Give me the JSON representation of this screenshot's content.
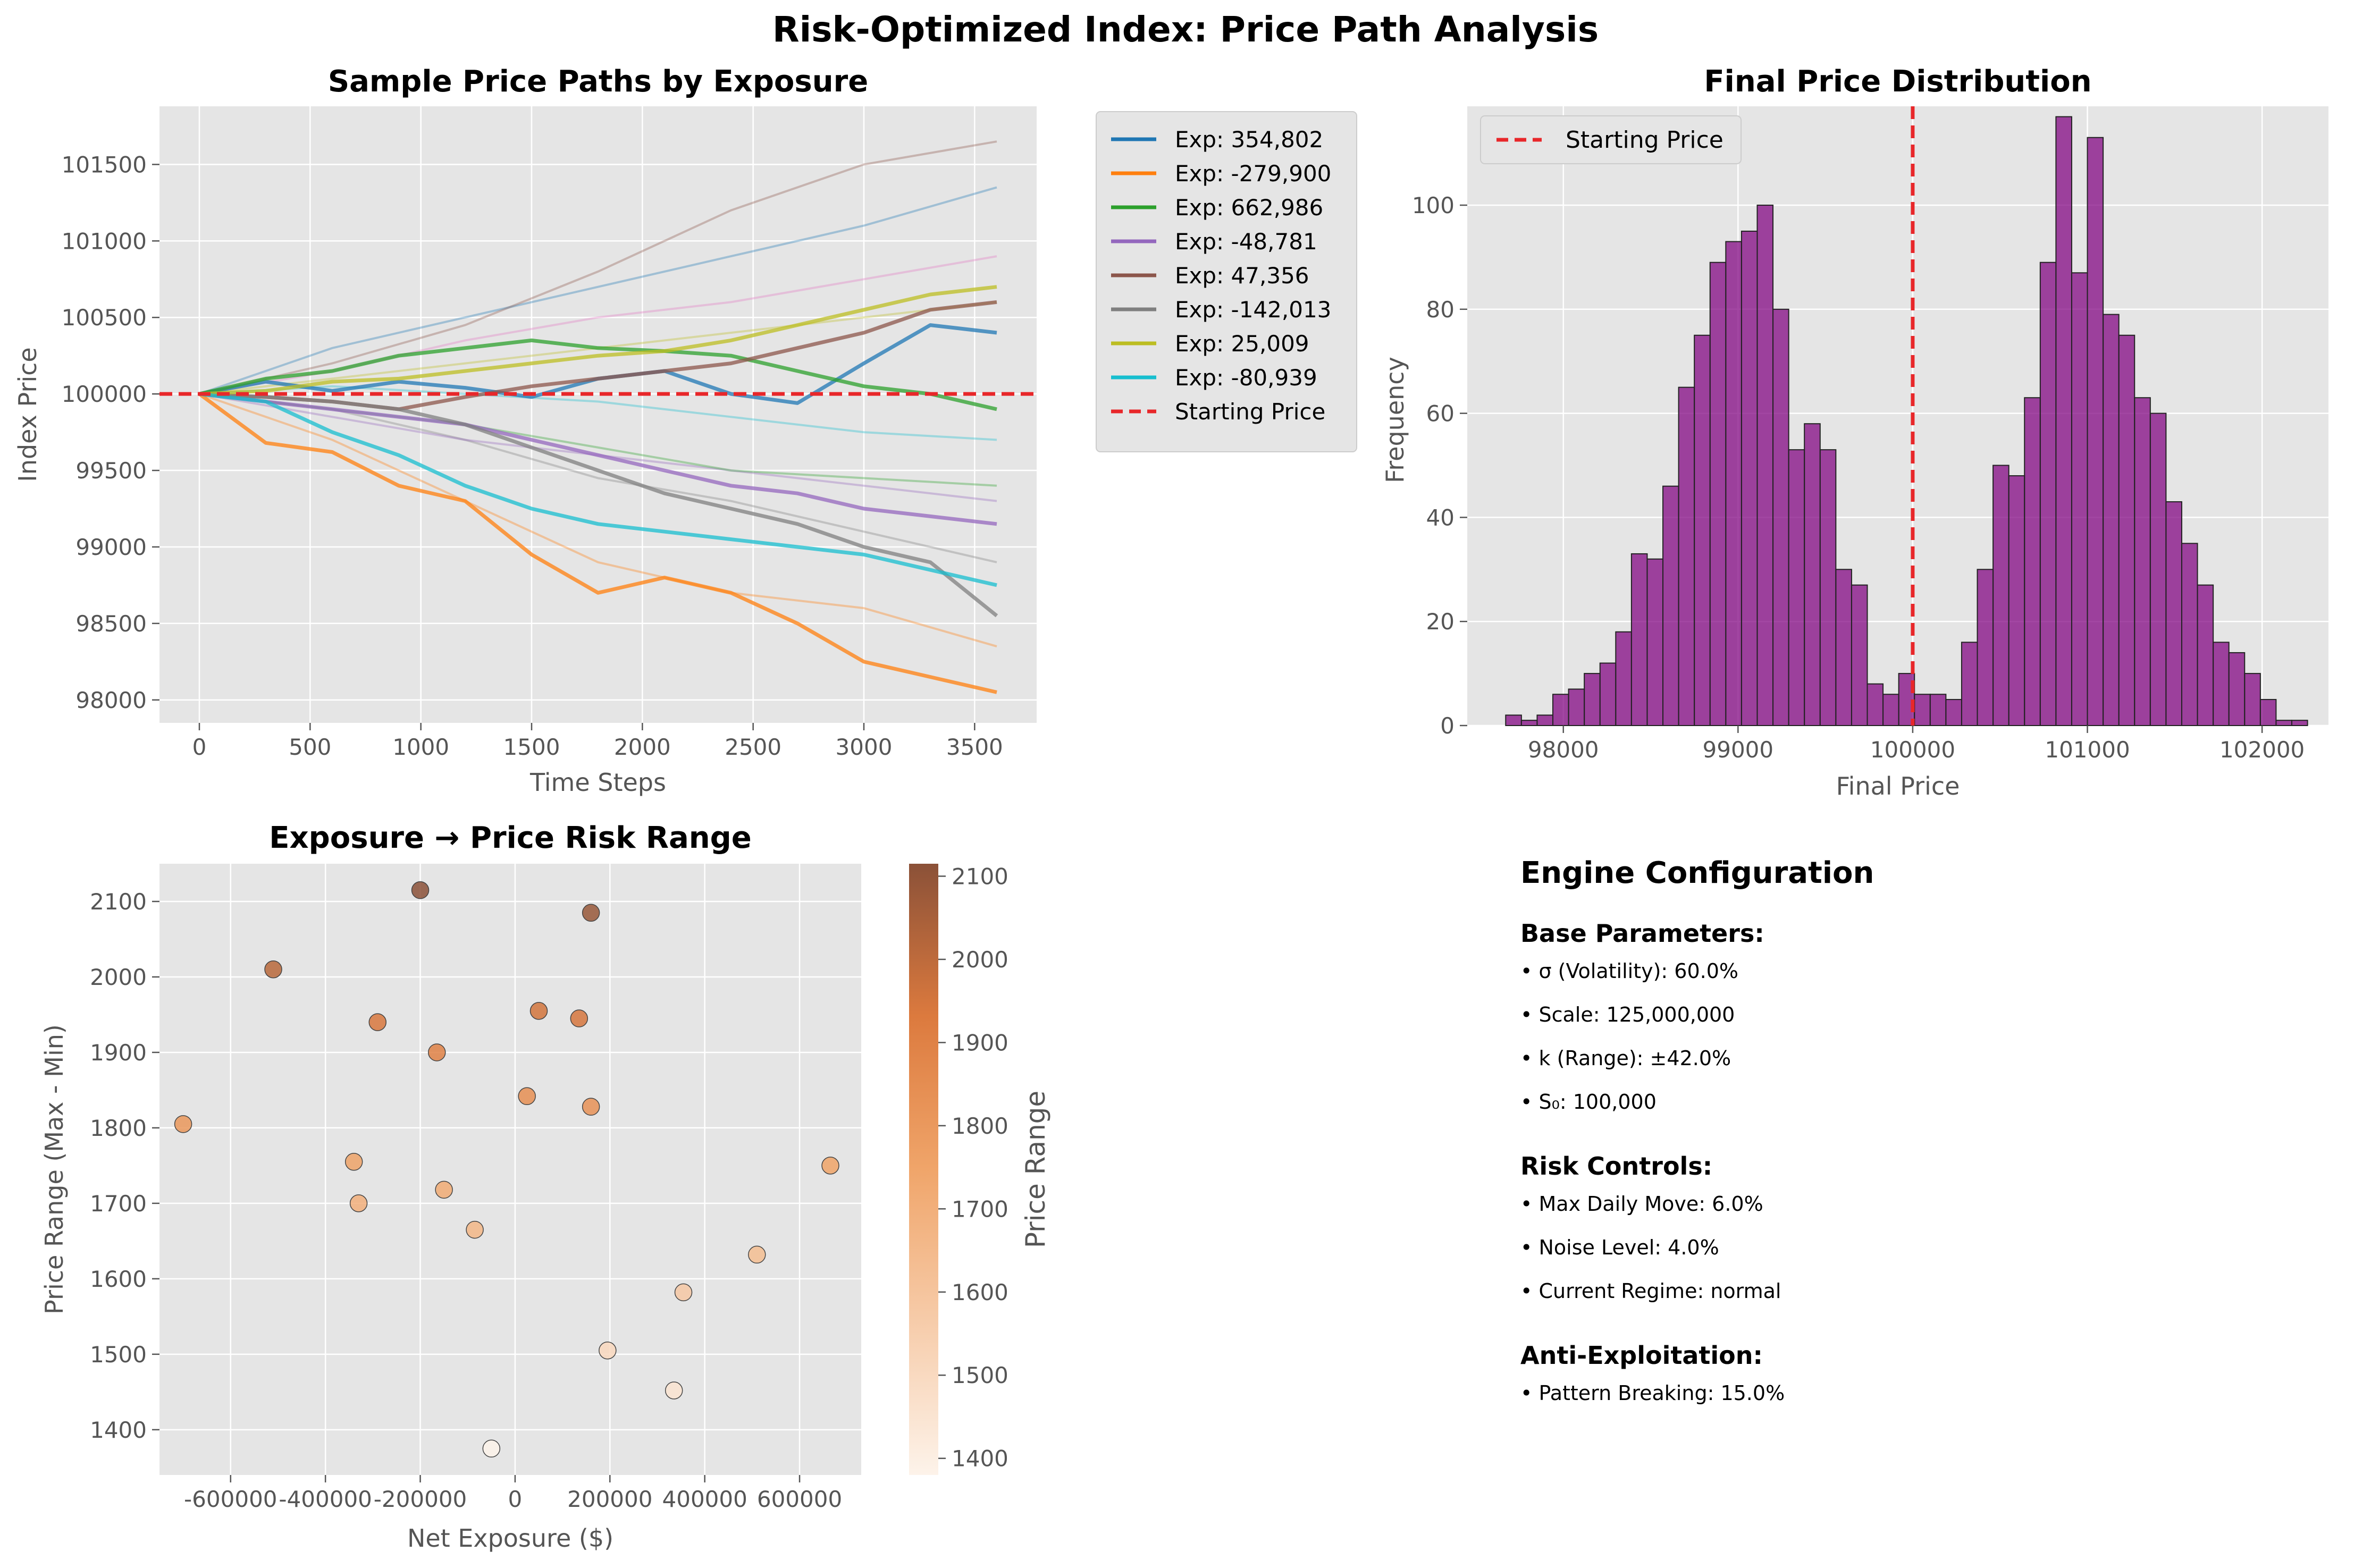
{
  "figure": {
    "suptitle": "Risk-Optimized Index: Price Path Analysis"
  },
  "chart_data": [
    {
      "type": "line",
      "title": "Sample Price Paths by Exposure",
      "xlabel": "Time Steps",
      "ylabel": "Index Price",
      "xlim": [
        -180,
        3780
      ],
      "ylim": [
        97850,
        101880
      ],
      "xticks": [
        0,
        500,
        1000,
        1500,
        2000,
        2500,
        3000,
        3500
      ],
      "yticks": [
        98000,
        98500,
        99000,
        99500,
        100000,
        100500,
        101000,
        101500
      ],
      "grid": true,
      "legend": "outside-right",
      "starting_price": 100000,
      "starting_price_label": "Starting Price",
      "series": [
        {
          "name": "Exp: 354,802",
          "color": "#1f77b4",
          "x": [
            0,
            300,
            600,
            900,
            1200,
            1500,
            1800,
            2100,
            2400,
            2700,
            3000,
            3300,
            3600
          ],
          "values": [
            100000,
            100080,
            100020,
            100080,
            100040,
            99980,
            100100,
            100150,
            100000,
            99940,
            100200,
            100450,
            100400
          ]
        },
        {
          "name": "Exp: -279,900",
          "color": "#ff7f0e",
          "x": [
            0,
            300,
            600,
            900,
            1200,
            1500,
            1800,
            2100,
            2400,
            2700,
            3000,
            3300,
            3600
          ],
          "values": [
            100000,
            99680,
            99620,
            99400,
            99300,
            98950,
            98700,
            98800,
            98700,
            98500,
            98250,
            98150,
            98050
          ]
        },
        {
          "name": "Exp: 662,986",
          "color": "#2ca02c",
          "x": [
            0,
            300,
            600,
            900,
            1200,
            1500,
            1800,
            2100,
            2400,
            2700,
            3000,
            3300,
            3600
          ],
          "values": [
            100000,
            100100,
            100150,
            100250,
            100300,
            100350,
            100300,
            100280,
            100250,
            100150,
            100050,
            100000,
            99900
          ]
        },
        {
          "name": "Exp: -48,781",
          "color": "#9467bd",
          "x": [
            0,
            300,
            600,
            900,
            1200,
            1500,
            1800,
            2100,
            2400,
            2700,
            3000,
            3300,
            3600
          ],
          "values": [
            100000,
            99950,
            99900,
            99850,
            99800,
            99700,
            99600,
            99500,
            99400,
            99350,
            99250,
            99200,
            99150
          ]
        },
        {
          "name": "Exp: 47,356",
          "color": "#8c564b",
          "x": [
            0,
            300,
            600,
            900,
            1200,
            1500,
            1800,
            2100,
            2400,
            2700,
            3000,
            3300,
            3600
          ],
          "values": [
            100000,
            99980,
            99950,
            99900,
            99980,
            100050,
            100100,
            100150,
            100200,
            100300,
            100400,
            100550,
            100600
          ]
        },
        {
          "name": "Exp: -142,013",
          "color": "#7f7f7f",
          "x": [
            0,
            300,
            600,
            900,
            1200,
            1500,
            1800,
            2100,
            2400,
            2700,
            3000,
            3300,
            3600
          ],
          "values": [
            100000,
            99980,
            99950,
            99900,
            99800,
            99650,
            99500,
            99350,
            99250,
            99150,
            99000,
            98900,
            98550
          ]
        },
        {
          "name": "Exp: 25,009",
          "color": "#bcbd22",
          "x": [
            0,
            300,
            600,
            900,
            1200,
            1500,
            1800,
            2100,
            2400,
            2700,
            3000,
            3300,
            3600
          ],
          "values": [
            100000,
            100020,
            100080,
            100100,
            100150,
            100200,
            100250,
            100280,
            100350,
            100450,
            100550,
            100650,
            100700
          ]
        },
        {
          "name": "Exp: -80,939",
          "color": "#17becf",
          "x": [
            0,
            300,
            600,
            900,
            1200,
            1500,
            1800,
            2100,
            2400,
            2700,
            3000,
            3300,
            3600
          ],
          "values": [
            100000,
            99950,
            99750,
            99600,
            99400,
            99250,
            99150,
            99100,
            99050,
            99000,
            98950,
            98850,
            98750
          ]
        },
        {
          "name": "",
          "color": "#1f77b4",
          "x": [
            0,
            600,
            1200,
            1800,
            2400,
            3000,
            3600
          ],
          "values": [
            100000,
            100300,
            100500,
            100700,
            100900,
            101100,
            101350
          ]
        },
        {
          "name": "",
          "color": "#8c564b",
          "x": [
            0,
            600,
            1200,
            1800,
            2400,
            3000,
            3600
          ],
          "values": [
            100000,
            100200,
            100450,
            100800,
            101200,
            101500,
            101650
          ]
        },
        {
          "name": "",
          "color": "#ff7f0e",
          "x": [
            0,
            600,
            1200,
            1800,
            2400,
            3000,
            3600
          ],
          "values": [
            100000,
            99700,
            99300,
            98900,
            98700,
            98600,
            98350
          ]
        },
        {
          "name": "",
          "color": "#7f7f7f",
          "x": [
            0,
            600,
            1200,
            1800,
            2400,
            3000,
            3600
          ],
          "values": [
            100000,
            99900,
            99700,
            99450,
            99300,
            99100,
            98900
          ]
        },
        {
          "name": "",
          "color": "#17becf",
          "x": [
            0,
            600,
            1200,
            1800,
            2400,
            3000,
            3600
          ],
          "values": [
            100000,
            100050,
            100000,
            99950,
            99850,
            99750,
            99700
          ]
        },
        {
          "name": "",
          "color": "#bcbd22",
          "x": [
            0,
            600,
            1200,
            1800,
            2400,
            3000,
            3600
          ],
          "values": [
            100000,
            100100,
            100200,
            100300,
            100400,
            100500,
            100600
          ]
        },
        {
          "name": "",
          "color": "#9467bd",
          "x": [
            0,
            600,
            1200,
            1800,
            2400,
            3000,
            3600
          ],
          "values": [
            100000,
            99850,
            99700,
            99600,
            99500,
            99400,
            99300
          ]
        },
        {
          "name": "",
          "color": "#2ca02c",
          "x": [
            0,
            600,
            1200,
            1800,
            2400,
            3000,
            3600
          ],
          "values": [
            100000,
            99900,
            99800,
            99650,
            99500,
            99450,
            99400
          ]
        },
        {
          "name": "",
          "color": "#e377c2",
          "x": [
            0,
            600,
            1200,
            1800,
            2400,
            3000,
            3600
          ],
          "values": [
            100000,
            100150,
            100350,
            100500,
            100600,
            100750,
            100900
          ]
        }
      ]
    },
    {
      "type": "histogram",
      "title": "Final Price Distribution",
      "xlabel": "Final Price",
      "ylabel": "Frequency",
      "xlim": [
        97450,
        102380
      ],
      "ylim": [
        0,
        119
      ],
      "xticks": [
        98000,
        99000,
        100000,
        101000,
        102000
      ],
      "yticks": [
        0,
        20,
        40,
        60,
        80,
        100
      ],
      "grid": true,
      "legend": "top-left",
      "color": "#800080",
      "starting_price": 100000,
      "starting_price_label": "Starting Price",
      "bin_start": 97670,
      "bin_width": 90,
      "counts": [
        2,
        1,
        2,
        6,
        7,
        10,
        12,
        18,
        33,
        32,
        46,
        65,
        75,
        89,
        93,
        95,
        100,
        80,
        53,
        58,
        53,
        30,
        27,
        8,
        6,
        10,
        6,
        6,
        5,
        16,
        30,
        50,
        48,
        63,
        89,
        117,
        87,
        113,
        79,
        75,
        63,
        60,
        43,
        35,
        27,
        16,
        14,
        10,
        5,
        1,
        1
      ]
    },
    {
      "type": "scatter",
      "title": "Exposure → Price Risk Range",
      "xlabel": "Net Exposure ($)",
      "ylabel": "Price Range (Max - Min)",
      "colorbar_label": "Price Range",
      "xlim": [
        -750000,
        730000
      ],
      "ylim": [
        1340,
        2150
      ],
      "xticks": [
        -600000,
        -400000,
        -200000,
        0,
        200000,
        400000,
        600000
      ],
      "yticks": [
        1400,
        1500,
        1600,
        1700,
        1800,
        1900,
        2000,
        2100
      ],
      "colorbar_ticks": [
        1400,
        1500,
        1600,
        1700,
        1800,
        1900,
        2000,
        2100
      ],
      "color_range": [
        1380,
        2115
      ],
      "grid": true,
      "points": [
        {
          "x": -200000,
          "y": 2115
        },
        {
          "x": 160000,
          "y": 2085
        },
        {
          "x": -510000,
          "y": 2010
        },
        {
          "x": 50000,
          "y": 1955
        },
        {
          "x": 135000,
          "y": 1945
        },
        {
          "x": -290000,
          "y": 1940
        },
        {
          "x": -165000,
          "y": 1900
        },
        {
          "x": 25000,
          "y": 1842
        },
        {
          "x": 160000,
          "y": 1828
        },
        {
          "x": -700000,
          "y": 1805
        },
        {
          "x": -340000,
          "y": 1755
        },
        {
          "x": 665000,
          "y": 1750
        },
        {
          "x": -150000,
          "y": 1718
        },
        {
          "x": -330000,
          "y": 1700
        },
        {
          "x": -85000,
          "y": 1665
        },
        {
          "x": 510000,
          "y": 1632
        },
        {
          "x": 355000,
          "y": 1582
        },
        {
          "x": 195000,
          "y": 1505
        },
        {
          "x": 335000,
          "y": 1452
        },
        {
          "x": -50000,
          "y": 1375
        }
      ]
    }
  ],
  "config": {
    "title": "Engine Configuration",
    "base_head": "Base Parameters:",
    "base_items": [
      "• σ (Volatility): 60.0%",
      "• Scale: 125,000,000",
      "• k (Range): ±42.0%",
      "• S₀: 100,000"
    ],
    "risk_head": "Risk Controls:",
    "risk_items": [
      "• Max Daily Move: 6.0%",
      "• Noise Level: 4.0%",
      "• Current Regime: normal"
    ],
    "anti_head": "Anti-Exploitation:",
    "anti_items": [
      "• Pattern Breaking: 15.0%"
    ]
  }
}
